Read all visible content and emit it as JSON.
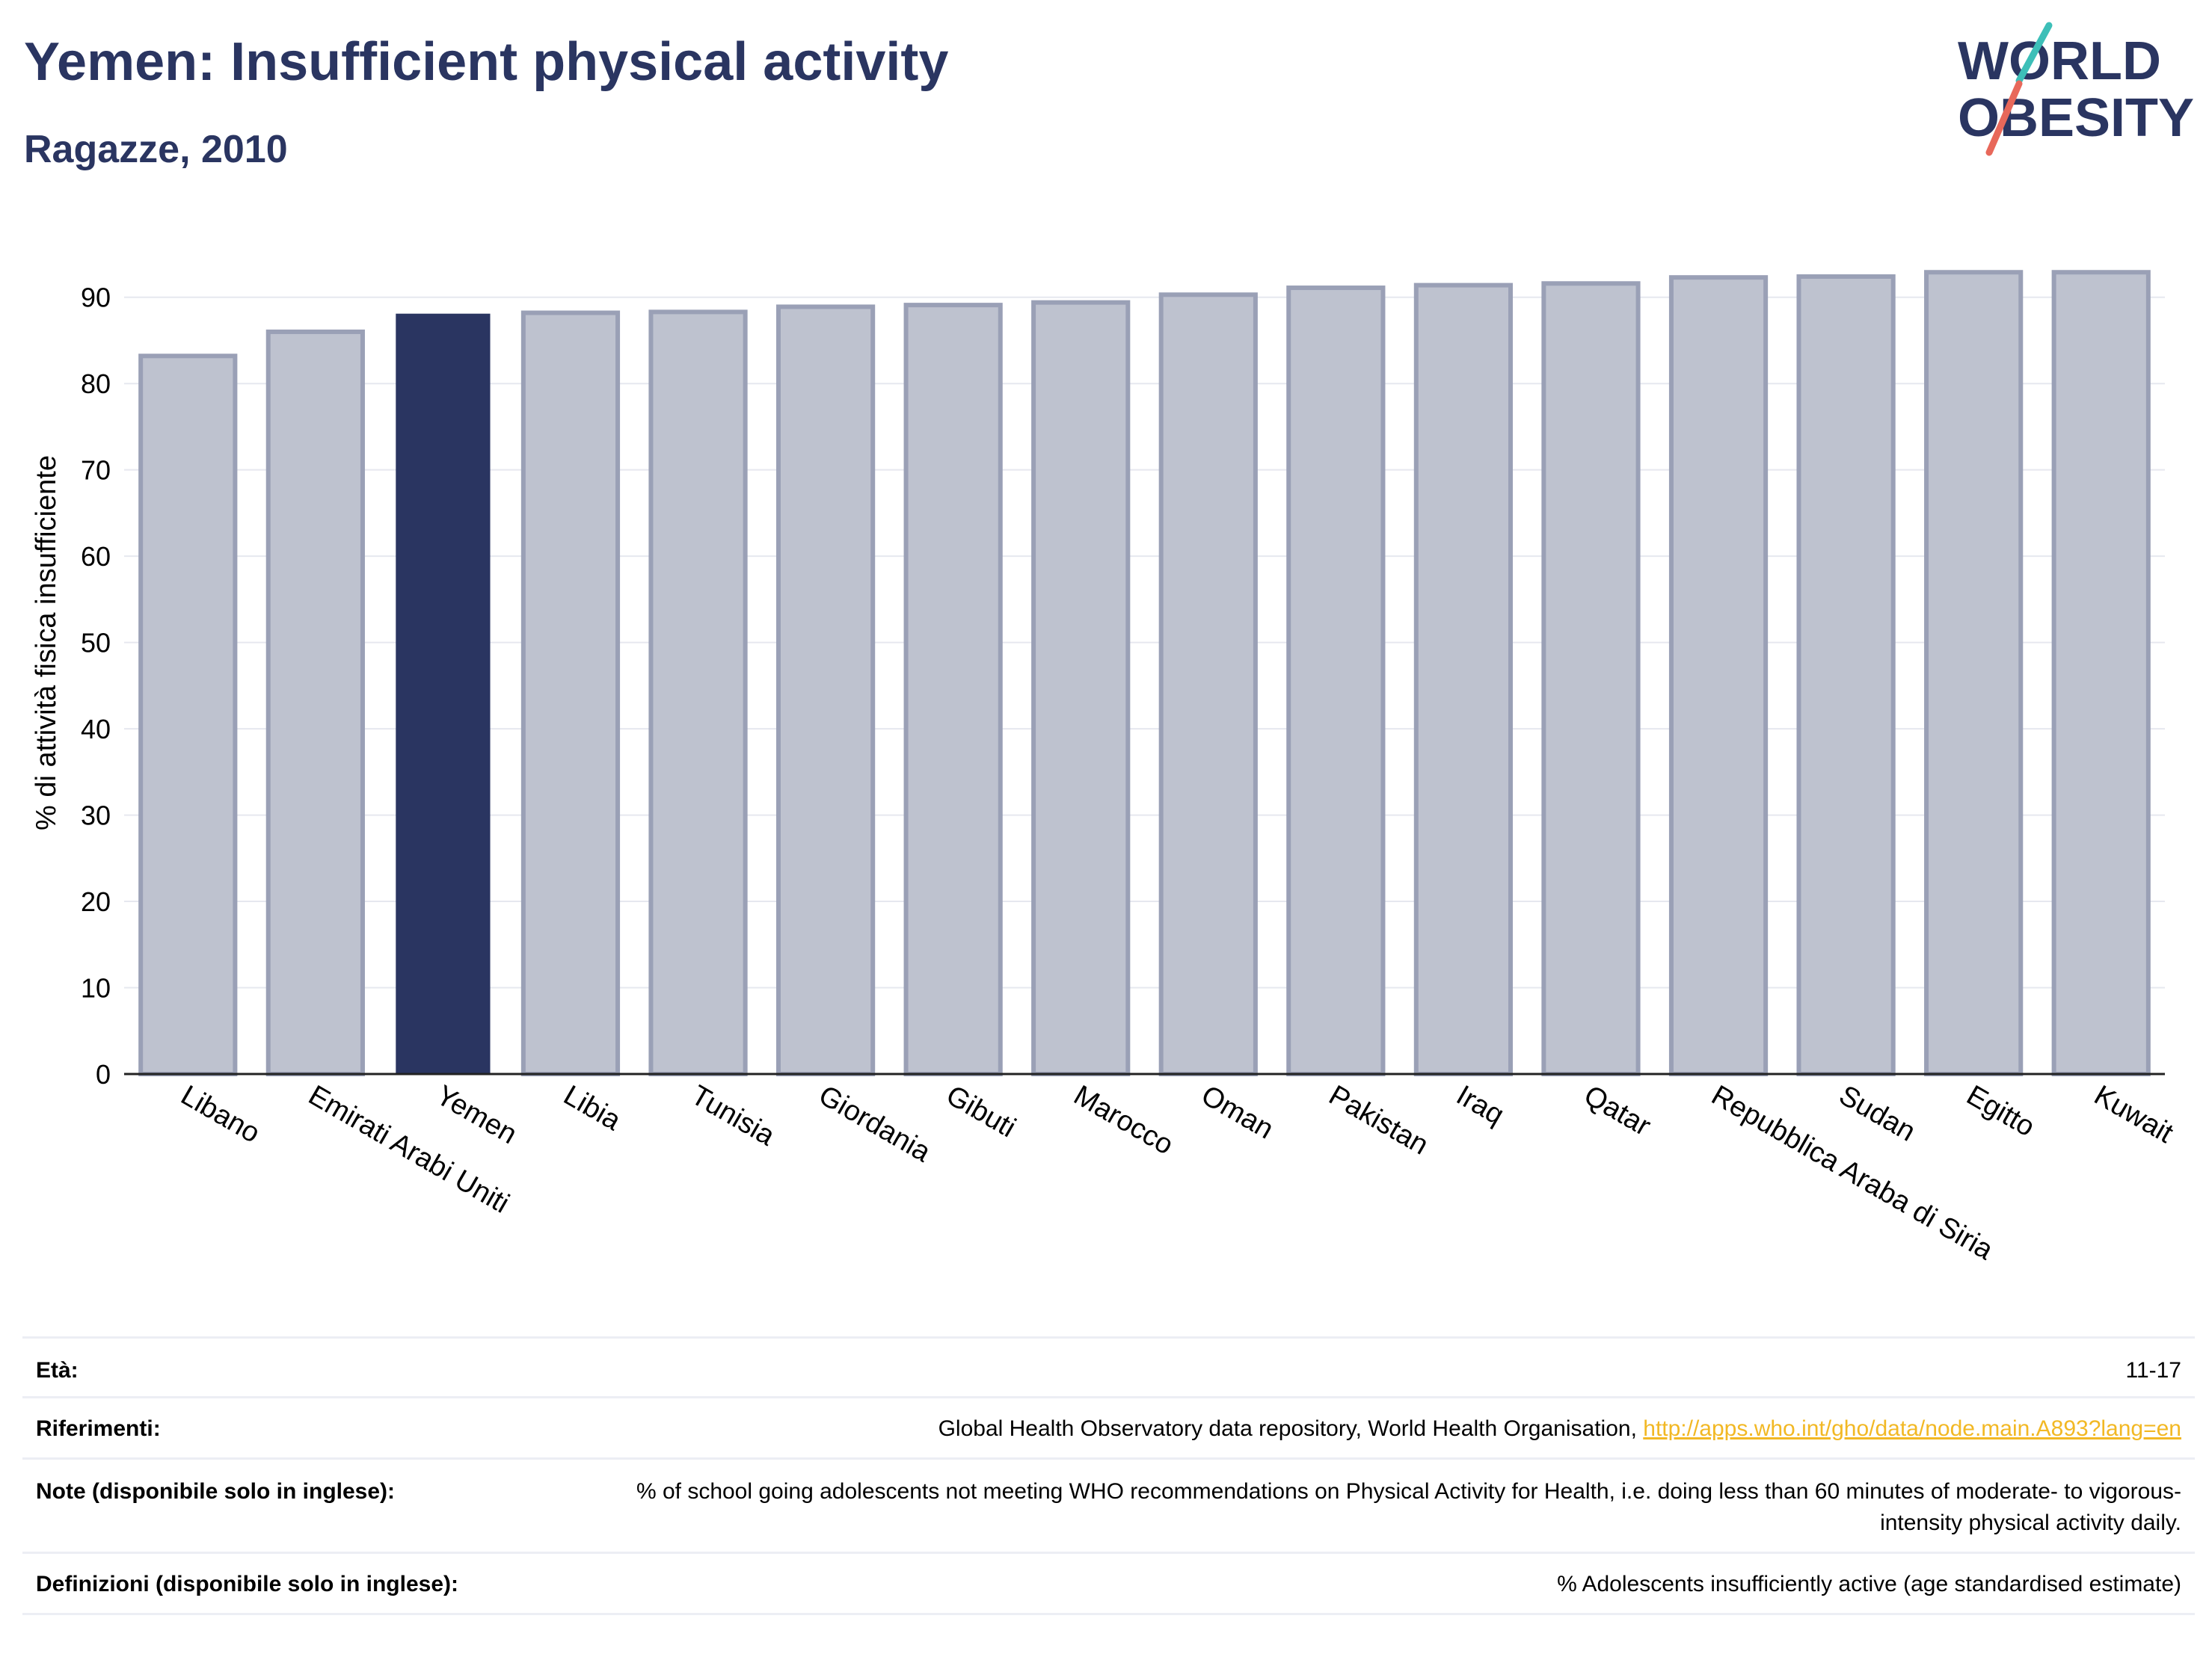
{
  "header": {
    "title": "Yemen: Insufficient physical activity",
    "subtitle": "Ragazze, 2010"
  },
  "logo": {
    "line1": "WORLD",
    "line2": "OBESITY"
  },
  "colors": {
    "title": "#2a3561",
    "highlight_bar": "#2a3561",
    "bar_fill": "#bec2cf",
    "bar_stroke": "#9aa0b6",
    "grid": "#e6e8ef",
    "link": "#f2b824",
    "logo_teal": "#3dbfb8",
    "logo_red": "#e8685a"
  },
  "chart_data": {
    "type": "bar",
    "categories": [
      "Libano",
      "Emirati Arabi Uniti",
      "Yemen",
      "Libia",
      "Tunisia",
      "Giordania",
      "Gibuti",
      "Marocco",
      "Oman",
      "Pakistan",
      "Iraq",
      "Qatar",
      "Repubblica Araba di Siria",
      "Sudan",
      "Egitto",
      "Kuwait"
    ],
    "values": [
      83.2,
      86.0,
      88.1,
      88.2,
      88.3,
      88.9,
      89.1,
      89.4,
      90.3,
      91.1,
      91.4,
      91.6,
      92.3,
      92.4,
      92.9,
      92.9
    ],
    "highlight": "Yemen",
    "title": "",
    "xlabel": "",
    "ylabel": "% di attività fisica insufficiente",
    "ylim": [
      0,
      95
    ],
    "yticks": [
      0,
      10,
      20,
      30,
      40,
      50,
      60,
      70,
      80,
      90
    ],
    "grid": true,
    "legend": "none"
  },
  "metadata": {
    "rows": [
      {
        "label": "Età:",
        "value": "11-17"
      },
      {
        "label": "Riferimenti:",
        "value": "Global Health Observatory data repository, World Health Organisation,",
        "link": "http://apps.who.int/gho/data/node.main.A893?lang=en"
      },
      {
        "label": "Note (disponibile solo in inglese):",
        "value": "% of school going adolescents not meeting WHO recommendations on Physical Activity for Health, i.e. doing less than 60 minutes of moderate- to vigorous-intensity physical activity daily."
      },
      {
        "label": "Definizioni (disponibile solo in inglese):",
        "value": "% Adolescents insufficiently active (age standardised estimate)"
      }
    ]
  }
}
